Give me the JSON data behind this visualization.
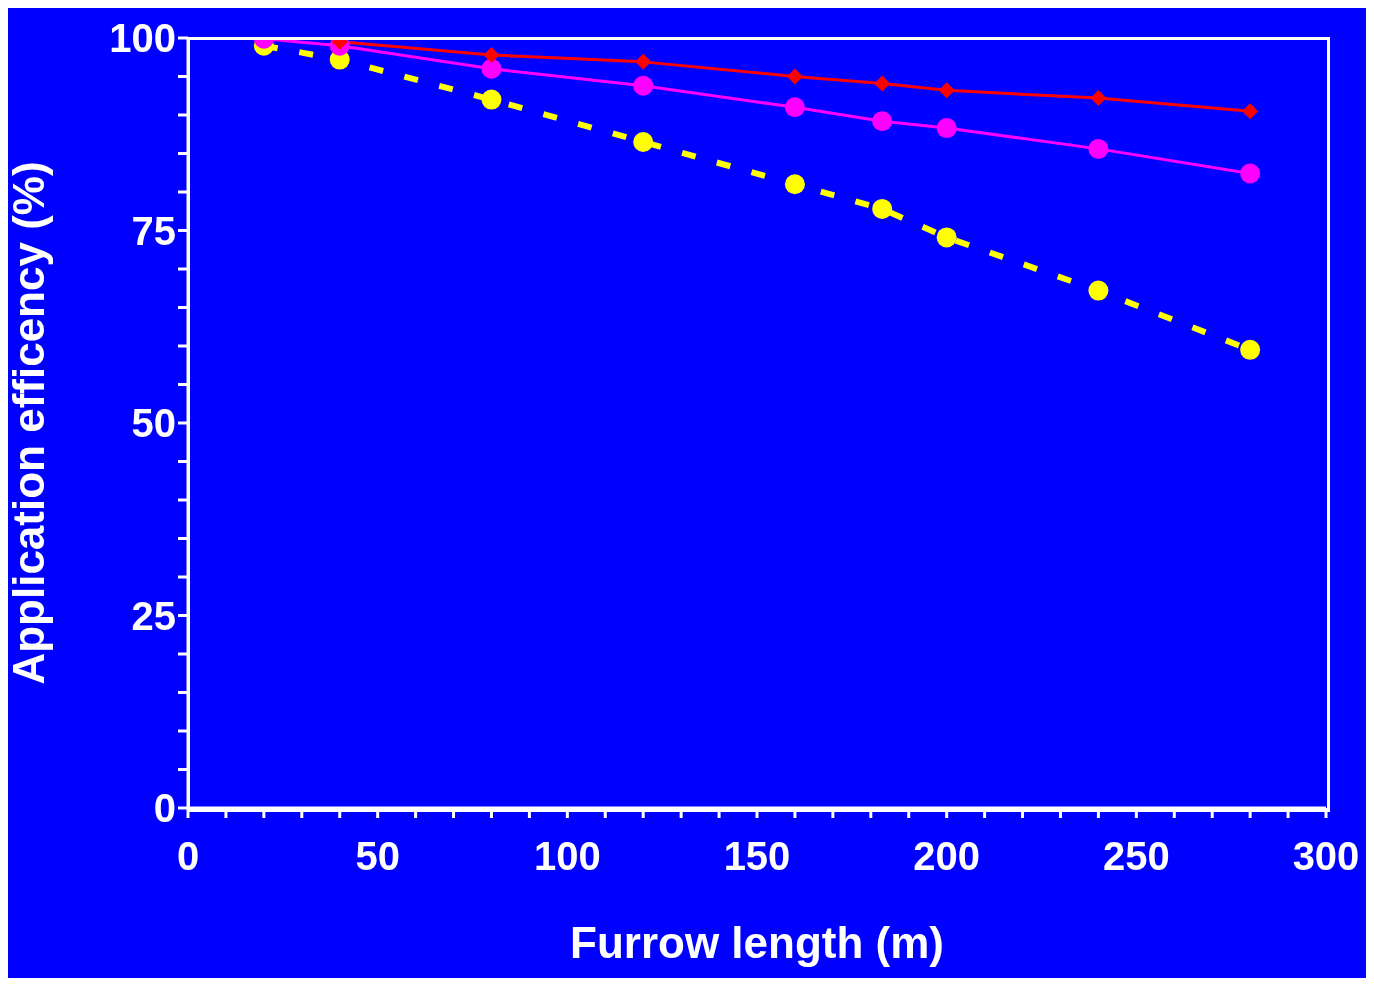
{
  "chart_data": {
    "type": "line",
    "xlabel": "Furrow length (m)",
    "ylabel": "Application efficency (%)",
    "x": [
      20,
      40,
      80,
      120,
      160,
      183,
      200,
      240,
      280
    ],
    "series": [
      {
        "color": "#ff0000",
        "marker": "diamond",
        "line_style": "solid",
        "values": [
          null,
          99.5,
          97.8,
          96.9,
          95.0,
          94.1,
          93.2,
          92.2,
          90.5
        ]
      },
      {
        "color": "#ff00ff",
        "marker": "circle",
        "line_style": "solid",
        "values": [
          99.9,
          99.0,
          96.0,
          93.8,
          91.0,
          89.2,
          88.3,
          85.6,
          82.4
        ]
      },
      {
        "color": "#ffff00",
        "marker": "circle",
        "line_style": "dashed",
        "values": [
          99.0,
          97.2,
          92.0,
          86.5,
          81.0,
          77.8,
          74.1,
          67.2,
          59.5
        ]
      }
    ],
    "xlim": [
      0,
      300
    ],
    "ylim": [
      0,
      100
    ],
    "xticks": [
      0,
      {
        "value": 10,
        "label": null
      },
      {
        "value": 20,
        "label": null
      },
      {
        "value": 30,
        "label": null
      },
      {
        "value": 40,
        "label": null
      },
      50,
      {
        "value": 60,
        "label": null
      },
      {
        "value": 70,
        "label": null
      },
      {
        "value": 80,
        "label": null
      },
      {
        "value": 90,
        "label": null
      },
      100,
      {
        "value": 110,
        "label": null
      },
      {
        "value": 120,
        "label": null
      },
      {
        "value": 130,
        "label": null
      },
      {
        "value": 140,
        "label": null
      },
      150,
      {
        "value": 160,
        "label": null
      },
      {
        "value": 170,
        "label": null
      },
      {
        "value": 180,
        "label": null
      },
      {
        "value": 190,
        "label": null
      },
      200,
      {
        "value": 210,
        "label": null
      },
      {
        "value": 220,
        "label": null
      },
      {
        "value": 230,
        "label": null
      },
      {
        "value": 240,
        "label": null
      },
      250,
      {
        "value": 260,
        "label": null
      },
      {
        "value": 270,
        "label": null
      },
      {
        "value": 280,
        "label": null
      },
      {
        "value": 290,
        "label": null
      },
      300
    ],
    "yticks": [
      0,
      {
        "value": 5,
        "label": null
      },
      {
        "value": 10,
        "label": null
      },
      {
        "value": 15,
        "label": null
      },
      {
        "value": 20,
        "label": null
      },
      25,
      {
        "value": 30,
        "label": null
      },
      {
        "value": 35,
        "label": null
      },
      {
        "value": 40,
        "label": null
      },
      {
        "value": 45,
        "label": null
      },
      50,
      {
        "value": 55,
        "label": null
      },
      {
        "value": 60,
        "label": null
      },
      {
        "value": 65,
        "label": null
      },
      {
        "value": 70,
        "label": null
      },
      75,
      {
        "value": 80,
        "label": null
      },
      {
        "value": 85,
        "label": null
      },
      {
        "value": 90,
        "label": null
      },
      {
        "value": 95,
        "label": null
      },
      100
    ],
    "grid": false,
    "legend": false
  }
}
